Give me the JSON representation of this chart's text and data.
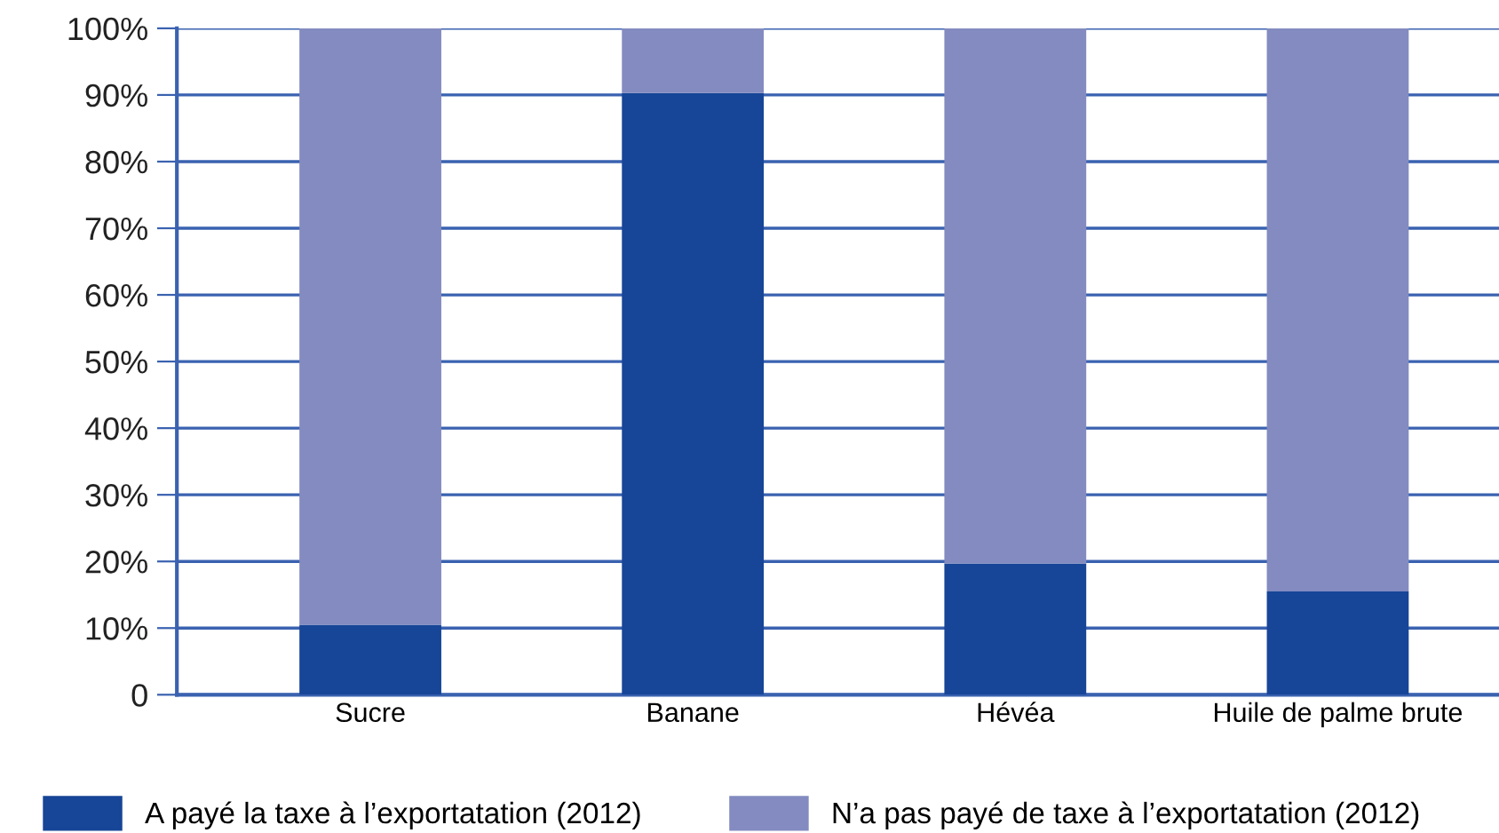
{
  "chart_data": {
    "type": "bar",
    "stacked": true,
    "categories": [
      "Sucre",
      "Banane",
      "Hévéa",
      "Huile de palme brute"
    ],
    "series": [
      {
        "name": "A payé la taxe à l’exportatation (2012)",
        "color": "#174597",
        "values": [
          10.5,
          90.3,
          19.7,
          15.5
        ]
      },
      {
        "name": "N’a pas payé de taxe à l’exportatation (2012)",
        "color": "#838bc0",
        "values": [
          89.5,
          9.7,
          80.3,
          84.5
        ]
      }
    ],
    "ylim": [
      0,
      100
    ],
    "yticks": [
      {
        "value": 0,
        "label": "0"
      },
      {
        "value": 10,
        "label": "10%"
      },
      {
        "value": 20,
        "label": "20%"
      },
      {
        "value": 30,
        "label": "30%"
      },
      {
        "value": 40,
        "label": "40%"
      },
      {
        "value": 50,
        "label": "50%"
      },
      {
        "value": 60,
        "label": "60%"
      },
      {
        "value": 70,
        "label": "70%"
      },
      {
        "value": 80,
        "label": "80%"
      },
      {
        "value": 90,
        "label": "90%"
      },
      {
        "value": 100,
        "label": "100%"
      }
    ],
    "grid": "y",
    "legend": "bottom"
  }
}
